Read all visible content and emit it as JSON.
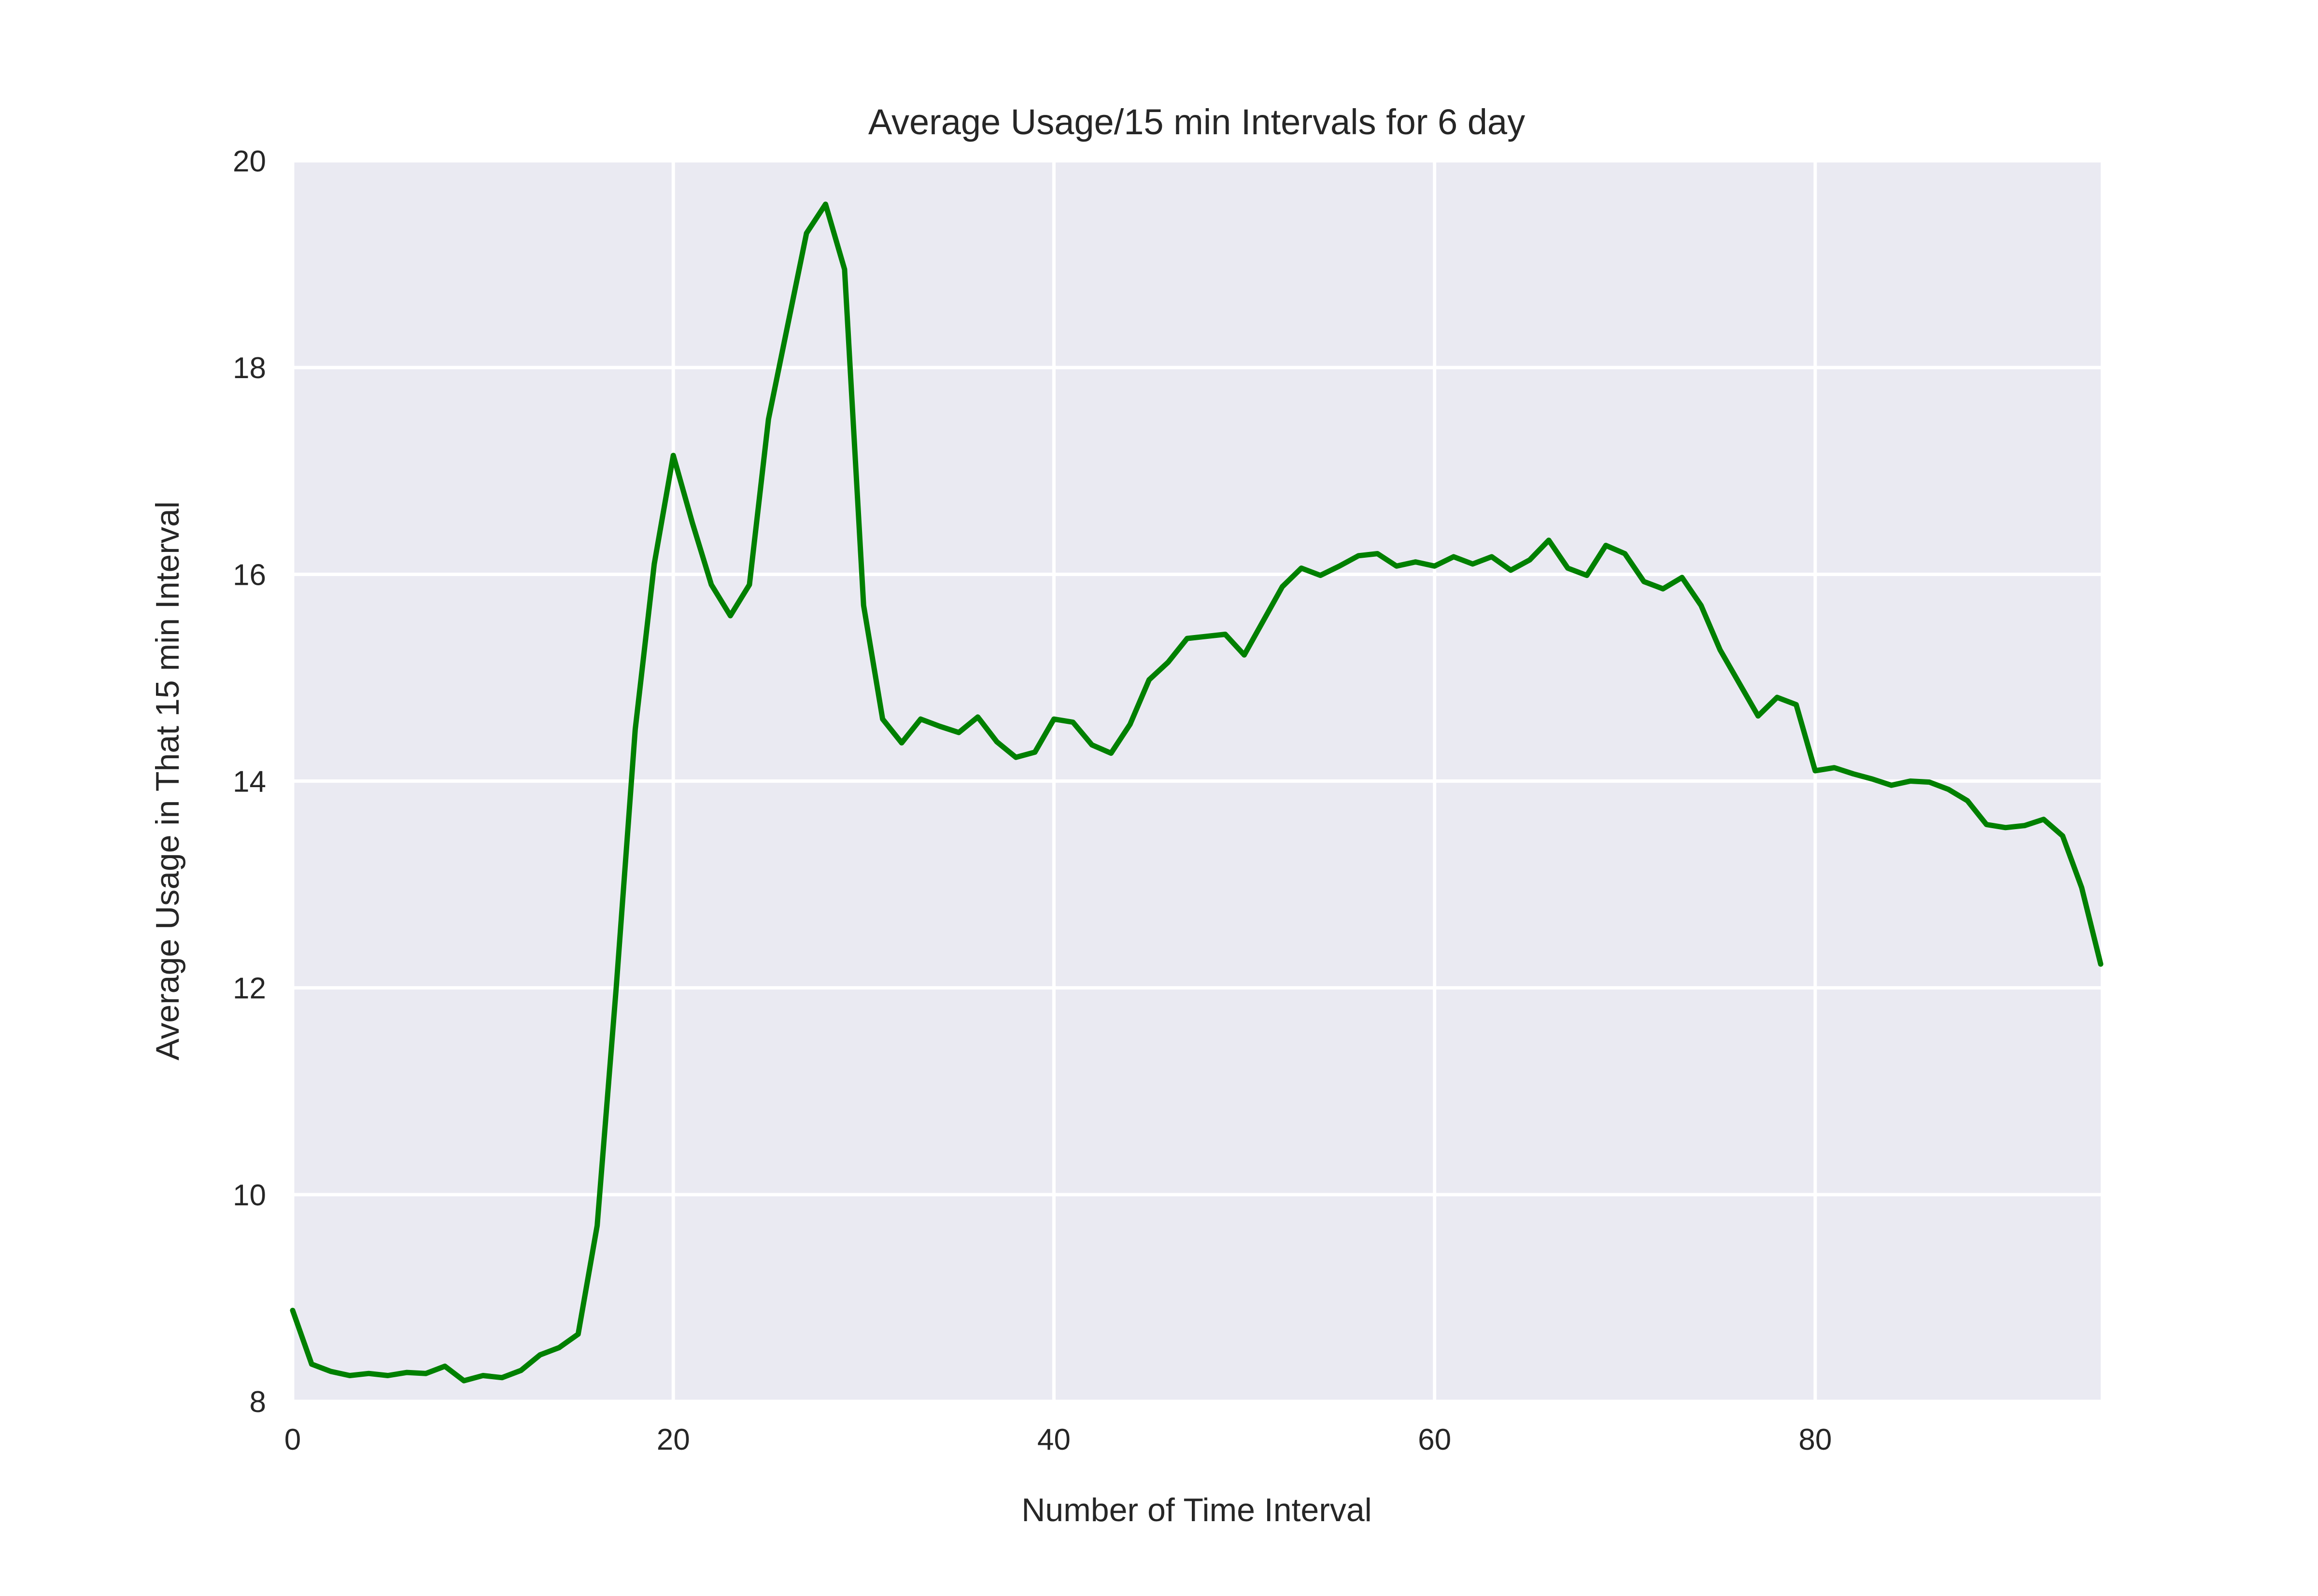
{
  "chart_data": {
    "type": "line",
    "title": "Average Usage/15 min Intervals for 6 day",
    "xlabel": "Number of Time Interval",
    "ylabel": "Average Usage in That 15 min Interval",
    "xlim": [
      0,
      95
    ],
    "ylim": [
      8,
      20
    ],
    "x_ticks": [
      "0",
      "20",
      "40",
      "60",
      "80"
    ],
    "y_ticks": [
      "8",
      "10",
      "12",
      "14",
      "16",
      "18",
      "20"
    ],
    "grid": true,
    "legend": "none",
    "colors": {
      "line": "#008000",
      "plot_background": "#EAEAF2",
      "grid": "#FFFFFF"
    },
    "series": [
      {
        "x": [
          0,
          1,
          2,
          3,
          4,
          5,
          6,
          7,
          8,
          9,
          10,
          11,
          12,
          13,
          14,
          15,
          16,
          17,
          18,
          19,
          20,
          21,
          22,
          23,
          24,
          25,
          26,
          27,
          28,
          29,
          30,
          31,
          32,
          33,
          34,
          35,
          36,
          37,
          38,
          39,
          40,
          41,
          42,
          43,
          44,
          45,
          46,
          47,
          48,
          49,
          50,
          51,
          52,
          53,
          54,
          55,
          56,
          57,
          58,
          59,
          60,
          61,
          62,
          63,
          64,
          65,
          66,
          67,
          68,
          69,
          70,
          71,
          72,
          73,
          74,
          75,
          76,
          77,
          78,
          79,
          80,
          81,
          82,
          83,
          84,
          85,
          86,
          87,
          88,
          89,
          90,
          91,
          92,
          93,
          94,
          95
        ],
        "values": [
          8.88,
          8.36,
          8.29,
          8.25,
          8.27,
          8.25,
          8.28,
          8.27,
          8.34,
          8.2,
          8.25,
          8.23,
          8.3,
          8.45,
          8.52,
          8.65,
          9.7,
          12.0,
          14.5,
          16.1,
          17.15,
          16.5,
          15.9,
          15.6,
          15.9,
          17.5,
          18.4,
          19.3,
          19.58,
          18.95,
          15.7,
          14.6,
          14.37,
          14.6,
          14.53,
          14.47,
          14.62,
          14.38,
          14.23,
          14.28,
          14.6,
          14.57,
          14.35,
          14.27,
          14.55,
          14.98,
          15.15,
          15.38,
          15.4,
          15.42,
          15.22,
          15.55,
          15.88,
          16.06,
          15.99,
          16.08,
          16.18,
          16.2,
          16.08,
          16.12,
          16.08,
          16.17,
          16.1,
          16.17,
          16.04,
          16.14,
          16.33,
          16.06,
          15.99,
          16.28,
          16.2,
          15.93,
          15.86,
          15.97,
          15.7,
          15.27,
          14.95,
          14.63,
          14.81,
          14.74,
          14.1,
          14.13,
          14.07,
          14.02,
          13.96,
          14.0,
          13.99,
          13.92,
          13.81,
          13.58,
          13.55,
          13.57,
          13.63,
          13.47,
          12.97,
          12.23
        ]
      }
    ]
  }
}
